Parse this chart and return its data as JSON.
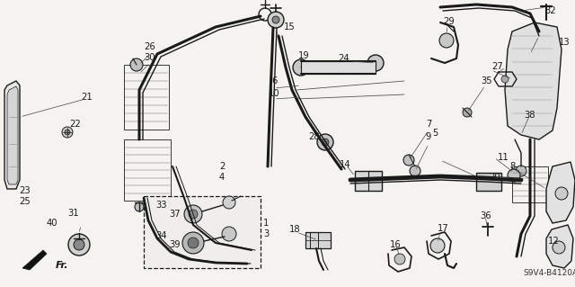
{
  "bg_color": "#f0eeea",
  "diagram_code": "S9V4-B4120A",
  "figsize": [
    6.4,
    3.19
  ],
  "dpi": 100,
  "image_b64": ""
}
